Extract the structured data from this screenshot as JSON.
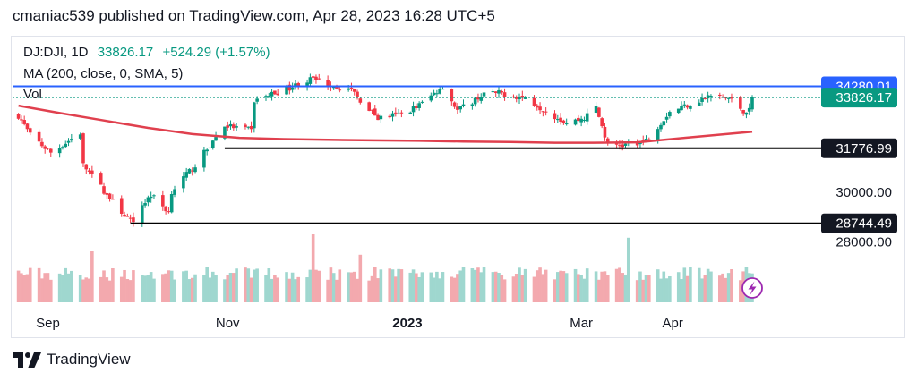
{
  "header": {
    "publish_line": "cmaniac539 published on TradingView.com, Apr 28, 2023 16:28 UTC+5"
  },
  "legend": {
    "symbol": "DJ:DJI, 1D",
    "last": "33826.17",
    "change": "+524.29 (+1.57%)",
    "ma": "MA (200, close, 0, SMA, 5)",
    "vol": "Vol"
  },
  "footer": {
    "brand": "TradingView"
  },
  "colors": {
    "up": "#089981",
    "down": "#f23645",
    "ma": "#e0404e",
    "resistance": "#2962ff",
    "support": "#000000",
    "vol_up": "#9fd7cf",
    "vol_down": "#f3a9ae",
    "last_label": "#089981"
  },
  "icons": {
    "lightning": "lightning-icon",
    "logo": "tradingview-logo-icon"
  },
  "chart_data": {
    "type": "candlestick",
    "symbol": "DJ:DJI",
    "interval": "1D",
    "date_range": [
      "2022-08-20",
      "2023-04-28"
    ],
    "ylim": [
      27000,
      35600
    ],
    "y_ticks": [
      28000,
      30000
    ],
    "y_tick_labels": [
      "28000.00",
      "30000.00"
    ],
    "x_ticks": [
      {
        "label": "Sep",
        "date": "2022-09-01",
        "bold": false
      },
      {
        "label": "Nov",
        "date": "2022-11-01",
        "bold": false
      },
      {
        "label": "2023",
        "date": "2023-01-01",
        "bold": true
      },
      {
        "label": "Mar",
        "date": "2023-03-01",
        "bold": false
      },
      {
        "label": "Apr",
        "date": "2023-04-01",
        "bold": false
      }
    ],
    "last_price": 33826.17,
    "horizontal_lines": [
      {
        "value": 34280.01,
        "label": "34280.01",
        "color": "#2962ff",
        "start": "2022-08-20"
      },
      {
        "value": 31776.99,
        "label": "31776.99",
        "color": "#000000",
        "start": "2022-10-31"
      },
      {
        "value": 28744.49,
        "label": "28744.49",
        "color": "#000000",
        "start": "2022-09-29"
      }
    ],
    "ma_points": [
      [
        "2022-08-22",
        33500
      ],
      [
        "2022-09-05",
        33200
      ],
      [
        "2022-09-20",
        32900
      ],
      [
        "2022-10-05",
        32600
      ],
      [
        "2022-10-20",
        32350
      ],
      [
        "2022-11-05",
        32200
      ],
      [
        "2022-11-20",
        32150
      ],
      [
        "2022-12-05",
        32120
      ],
      [
        "2022-12-20",
        32100
      ],
      [
        "2023-01-05",
        32080
      ],
      [
        "2023-01-20",
        32050
      ],
      [
        "2023-02-05",
        32030
      ],
      [
        "2023-02-20",
        32000
      ],
      [
        "2023-03-05",
        32000
      ],
      [
        "2023-03-20",
        32020
      ],
      [
        "2023-04-05",
        32200
      ],
      [
        "2023-04-28",
        32450
      ]
    ],
    "close_anchors": [
      [
        "2022-08-22",
        33100
      ],
      [
        "2022-08-26",
        32300
      ],
      [
        "2022-09-02",
        31600
      ],
      [
        "2022-09-12",
        32400
      ],
      [
        "2022-09-13",
        31100
      ],
      [
        "2022-09-23",
        29600
      ],
      [
        "2022-09-30",
        28700
      ],
      [
        "2022-10-03",
        29500
      ],
      [
        "2022-10-06",
        29900
      ],
      [
        "2022-10-12",
        29200
      ],
      [
        "2022-10-13",
        30050
      ],
      [
        "2022-10-21",
        31100
      ],
      [
        "2022-10-31",
        32700
      ],
      [
        "2022-11-09",
        32500
      ],
      [
        "2022-11-10",
        33700
      ],
      [
        "2022-11-30",
        34590
      ],
      [
        "2022-12-13",
        34100
      ],
      [
        "2022-12-22",
        33000
      ],
      [
        "2022-12-30",
        33150
      ],
      [
        "2023-01-06",
        33600
      ],
      [
        "2023-01-13",
        34300
      ],
      [
        "2023-01-18",
        33300
      ],
      [
        "2023-01-27",
        33980
      ],
      [
        "2023-02-02",
        34000
      ],
      [
        "2023-02-10",
        33800
      ],
      [
        "2023-02-24",
        32800
      ],
      [
        "2023-03-02",
        33000
      ],
      [
        "2023-03-06",
        33430
      ],
      [
        "2023-03-10",
        31900
      ],
      [
        "2023-03-15",
        31900
      ],
      [
        "2023-03-23",
        32100
      ],
      [
        "2023-03-31",
        33270
      ],
      [
        "2023-04-14",
        33890
      ],
      [
        "2023-04-20",
        33800
      ],
      [
        "2023-04-25",
        33300
      ],
      [
        "2023-04-27",
        33300
      ],
      [
        "2023-04-28",
        33826
      ]
    ],
    "volume_spikes": [
      {
        "date": "2022-11-30",
        "relative": 1.0
      },
      {
        "date": "2023-03-17",
        "relative": 0.95
      },
      {
        "date": "2022-09-16",
        "relative": 0.75
      },
      {
        "date": "2022-12-16",
        "relative": 0.7
      }
    ]
  }
}
